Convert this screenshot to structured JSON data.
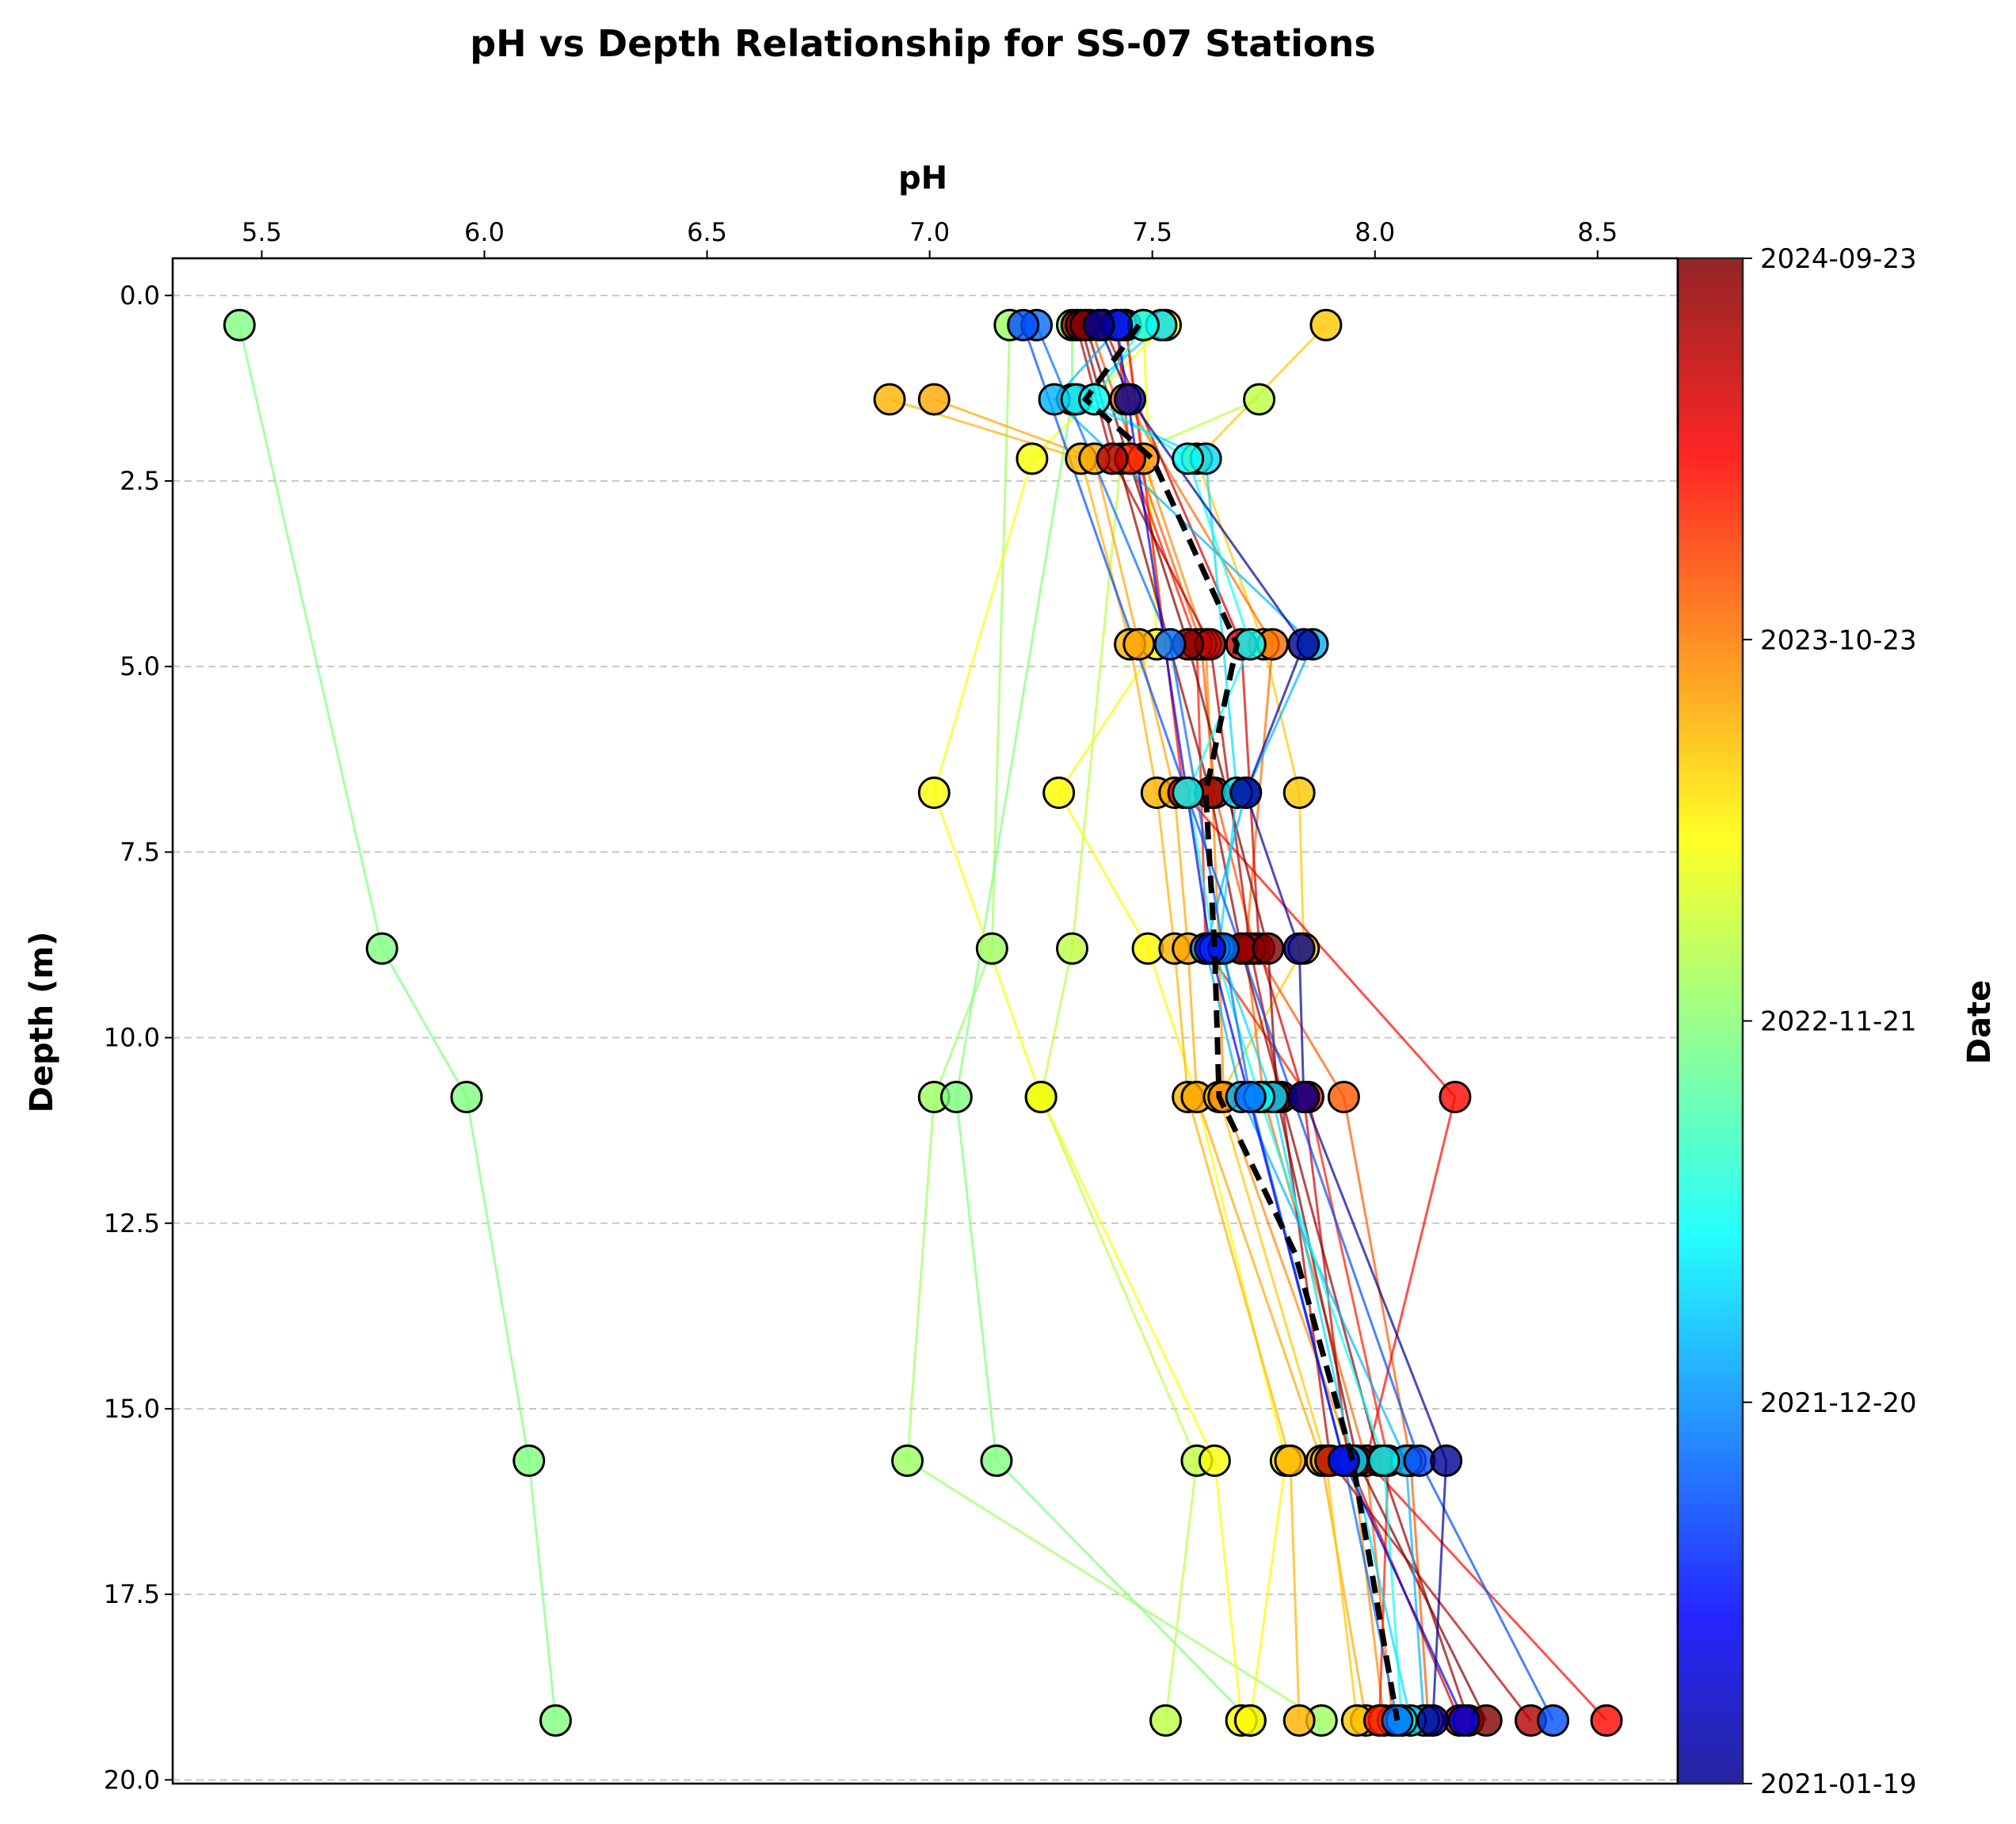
{
  "chart_data": {
    "type": "line",
    "title": "pH vs Depth Relationship for SS-07 Stations",
    "xlabel": "pH",
    "ylabel": "Depth (m)",
    "xlim": [
      5.3,
      8.68
    ],
    "ylim": [
      20.05,
      -0.5
    ],
    "x_axis_position": "top",
    "y_inverted": true,
    "xticks": [
      "5.5",
      "6.0",
      "6.5",
      "7.0",
      "7.5",
      "8.0",
      "8.5"
    ],
    "xtick_values": [
      5.5,
      6.0,
      6.5,
      7.0,
      7.5,
      8.0,
      8.5
    ],
    "yticks": [
      "0.0",
      "2.5",
      "5.0",
      "7.5",
      "10.0",
      "12.5",
      "15.0",
      "17.5",
      "20.0"
    ],
    "ytick_values": [
      0.0,
      2.5,
      5.0,
      7.5,
      10.0,
      12.5,
      15.0,
      17.5,
      20.0
    ],
    "grid": "y dashed",
    "colormap": "jet",
    "colorbar": {
      "label": "Date",
      "ticks": [
        "2021-01-19",
        "2021-12-20",
        "2022-11-21",
        "2023-10-23",
        "2024-09-23"
      ],
      "tick_fractions": [
        0.0,
        0.25,
        0.5,
        0.75,
        1.0
      ]
    },
    "depths": [
      0.4,
      1.4,
      2.2,
      4.7,
      6.7,
      8.8,
      10.8,
      12.9,
      15.7,
      19.2
    ],
    "mean_profile": {
      "style": "black dashed",
      "x": [
        7.47,
        7.35,
        7.5,
        7.69,
        7.62,
        7.64,
        7.65,
        7.82,
        7.95,
        8.05
      ],
      "depth": [
        0.4,
        1.4,
        2.2,
        4.7,
        6.7,
        8.8,
        10.8,
        12.9,
        15.7,
        19.2
      ]
    },
    "series": [
      {
        "date_fraction": 0.5,
        "depth": [
          0.4,
          8.8,
          10.8,
          15.7,
          19.2
        ],
        "ph": [
          5.45,
          5.77,
          5.96,
          6.1,
          6.16
        ]
      },
      {
        "date_fraction": 0.53,
        "depth": [
          0.4,
          8.8,
          10.8,
          15.7,
          19.2
        ],
        "ph": [
          7.18,
          7.14,
          7.01,
          6.95,
          7.88
        ]
      },
      {
        "date_fraction": 0.5,
        "depth": [
          0.4,
          1.4,
          10.8,
          15.7,
          19.2
        ],
        "ph": [
          7.32,
          7.32,
          7.06,
          7.15,
          7.72
        ]
      },
      {
        "date_fraction": 0.56,
        "depth": [
          1.4,
          2.2,
          8.8,
          10.8,
          15.7,
          19.2
        ],
        "ph": [
          7.74,
          7.43,
          7.32,
          7.25,
          7.6,
          7.53
        ]
      },
      {
        "date_fraction": 0.62,
        "depth": [
          0.4,
          2.2,
          6.7,
          10.8,
          15.7,
          19.2
        ],
        "ph": [
          7.53,
          7.23,
          7.01,
          7.25,
          7.64,
          7.7
        ]
      },
      {
        "date_fraction": 0.63,
        "depth": [
          0.4,
          4.7,
          6.7,
          8.8,
          10.8,
          15.7,
          19.2
        ],
        "ph": [
          7.48,
          7.51,
          7.29,
          7.49,
          7.6,
          7.8,
          7.72
        ]
      },
      {
        "date_fraction": 0.7,
        "depth": [
          1.4,
          2.2,
          4.7,
          6.7,
          8.8,
          10.8,
          15.7,
          19.2
        ],
        "ph": [
          6.91,
          7.34,
          7.45,
          7.51,
          7.55,
          7.58,
          7.81,
          7.83
        ]
      },
      {
        "date_fraction": 0.71,
        "depth": [
          1.4,
          2.2,
          4.7,
          6.7,
          8.8,
          10.8,
          15.7,
          19.2
        ],
        "ph": [
          7.01,
          7.37,
          7.47,
          7.55,
          7.58,
          7.6,
          7.88,
          7.98
        ]
      },
      {
        "date_fraction": 0.68,
        "depth": [
          0.4,
          2.2,
          4.7,
          6.7,
          8.8,
          10.8,
          15.7,
          19.2
        ],
        "ph": [
          7.89,
          7.6,
          7.75,
          7.83,
          7.84,
          7.65,
          7.89,
          7.96
        ]
      },
      {
        "date_fraction": 0.74,
        "depth": [
          0.4,
          2.2,
          4.7,
          8.8,
          10.8,
          15.7,
          19.2
        ],
        "ph": [
          7.44,
          7.48,
          7.62,
          7.65,
          7.66,
          7.95,
          8.02
        ]
      },
      {
        "date_fraction": 0.77,
        "depth": [
          1.4,
          4.7,
          8.8,
          10.8,
          15.7,
          19.2
        ],
        "ph": [
          7.44,
          7.77,
          7.71,
          7.75,
          7.98,
          8.04
        ]
      },
      {
        "date_fraction": 0.79,
        "depth": [
          0.4,
          4.7,
          6.7,
          8.8,
          10.8,
          15.7,
          19.2
        ],
        "ph": [
          7.36,
          7.61,
          7.64,
          7.73,
          7.93,
          8.08,
          8.12
        ]
      },
      {
        "date_fraction": 0.85,
        "depth": [
          0.4,
          2.2,
          4.7,
          8.8,
          10.8,
          15.7,
          19.2
        ],
        "ph": [
          7.42,
          7.45,
          7.6,
          7.62,
          7.85,
          8.03,
          8.01
        ]
      },
      {
        "date_fraction": 0.87,
        "depth": [
          0.4,
          6.7,
          10.8,
          15.7,
          19.2
        ],
        "ph": [
          7.44,
          7.57,
          8.18,
          7.98,
          8.52
        ]
      },
      {
        "date_fraction": 0.92,
        "depth": [
          0.4,
          4.7,
          8.8,
          10.8,
          15.7,
          19.2
        ],
        "ph": [
          7.39,
          7.7,
          7.74,
          7.84,
          7.94,
          8.19
        ]
      },
      {
        "date_fraction": 0.95,
        "depth": [
          0.4,
          2.2,
          4.7,
          8.8,
          10.8,
          15.7,
          19.2
        ],
        "ph": [
          7.33,
          7.41,
          7.63,
          7.72,
          7.79,
          7.9,
          8.35
        ]
      },
      {
        "date_fraction": 0.98,
        "depth": [
          0.4,
          6.7,
          8.8,
          15.7,
          19.2
        ],
        "ph": [
          7.34,
          7.63,
          7.7,
          8.01,
          8.21
        ]
      },
      {
        "date_fraction": 1.0,
        "depth": [
          0.4,
          4.7,
          8.8,
          10.8,
          15.7,
          19.2
        ],
        "ph": [
          7.35,
          7.58,
          7.76,
          7.78,
          7.96,
          8.25
        ]
      },
      {
        "date_fraction": 0.3,
        "depth": [
          0.4,
          1.4,
          4.7,
          6.7,
          8.8,
          10.8,
          15.7,
          19.2
        ],
        "ph": [
          7.43,
          7.28,
          7.86,
          7.71,
          7.62,
          7.7,
          8.07,
          8.11
        ]
      },
      {
        "date_fraction": 0.34,
        "depth": [
          0.4,
          1.4,
          2.2,
          6.7,
          8.8,
          10.8,
          15.7,
          19.2
        ],
        "ph": [
          7.52,
          7.33,
          7.62,
          7.69,
          7.65,
          7.77,
          7.95,
          8.08
        ]
      },
      {
        "date_fraction": 0.38,
        "depth": [
          0.4,
          1.4,
          2.2,
          4.7,
          6.7,
          8.8,
          10.8,
          15.7,
          19.2
        ],
        "ph": [
          7.48,
          7.37,
          7.58,
          7.72,
          7.58,
          7.64,
          7.74,
          8.02,
          8.06
        ]
      },
      {
        "date_fraction": 0.23,
        "depth": [
          0.4,
          4.7,
          8.8,
          10.8,
          15.7,
          19.2
        ],
        "ph": [
          7.24,
          7.54,
          7.66,
          7.72,
          7.93,
          8.05
        ]
      },
      {
        "date_fraction": 0.2,
        "depth": [
          0.4,
          15.7,
          19.2
        ],
        "ph": [
          7.21,
          8.1,
          8.4
        ]
      },
      {
        "date_fraction": 0.1,
        "depth": [
          0.4,
          8.8,
          15.7,
          19.2
        ],
        "ph": [
          7.42,
          7.63,
          7.93,
          8.2
        ]
      },
      {
        "date_fraction": 0.02,
        "depth": [
          0.4,
          1.4,
          4.7,
          6.7,
          8.8,
          10.8,
          15.7,
          19.2
        ],
        "ph": [
          7.38,
          7.45,
          7.84,
          7.71,
          7.83,
          7.84,
          8.16,
          8.13
        ]
      }
    ]
  }
}
